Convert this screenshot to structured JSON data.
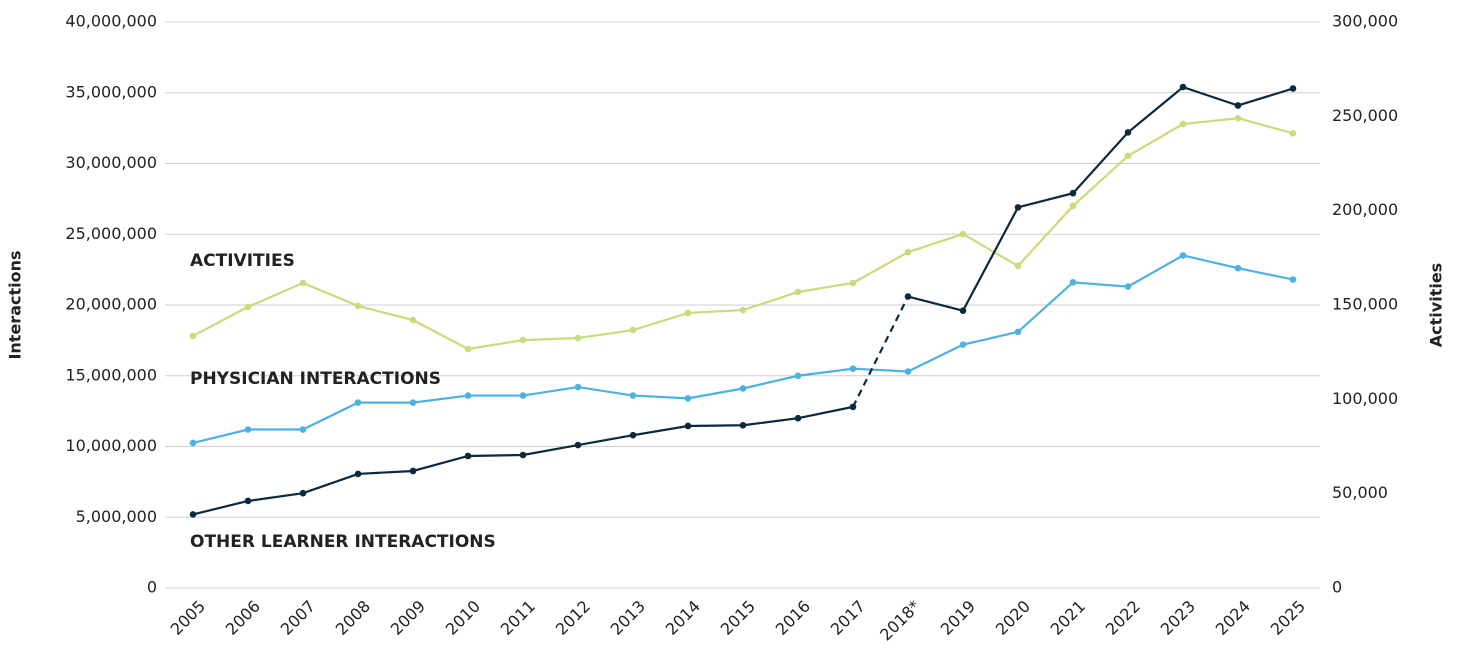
{
  "chart_data": {
    "type": "line",
    "ylabel": "Interactions",
    "y2label": "Activities",
    "categories": [
      "2005",
      "2006",
      "2007",
      "2008",
      "2009",
      "2010",
      "2011",
      "2012",
      "2013",
      "2014",
      "2015",
      "2016",
      "2017",
      "2018*",
      "2019",
      "2020",
      "2021",
      "2022",
      "2023",
      "2024",
      "2025"
    ],
    "ylim": [
      0,
      40000000
    ],
    "yticks": [
      0,
      {
        "value": 5000000,
        "label": "5,000,000"
      },
      {
        "value": 10000000,
        "label": "10,000,000"
      },
      {
        "value": 15000000,
        "label": "15,000,000"
      },
      {
        "value": 20000000,
        "label": "20,000,000"
      },
      {
        "value": 25000000,
        "label": "25,000,000"
      },
      {
        "value": 30000000,
        "label": "30,000,000"
      },
      {
        "value": 35000000,
        "label": "35,000,000"
      },
      {
        "value": 40000000,
        "label": "40,000,000"
      }
    ],
    "y2lim": [
      0,
      300000
    ],
    "y2ticks": [
      0,
      {
        "value": 50000,
        "label": "50,000"
      },
      {
        "value": 100000,
        "label": "100,000"
      },
      {
        "value": 150000,
        "label": "150,000"
      },
      {
        "value": 200000,
        "label": "200,000"
      },
      {
        "value": 250000,
        "label": "250,000"
      },
      {
        "value": 300000,
        "label": "300,000"
      }
    ],
    "grid": true,
    "series": [
      {
        "name": "ACTIVITIES",
        "color": "#c6dd7c",
        "label_color": "#7ea23c",
        "axis": "y2",
        "values": [
          133600,
          149000,
          161700,
          149500,
          142000,
          126700,
          131400,
          132500,
          136700,
          145800,
          147300,
          156900,
          161700,
          178000,
          187600,
          170700,
          202500,
          229000,
          245900,
          249000,
          241000
        ]
      },
      {
        "name": "PHYSICIAN INTERACTIONS",
        "color": "#4db1e2",
        "label_color": "#1b6b9c",
        "values": [
          10250000,
          11200000,
          11200000,
          13100000,
          13100000,
          13600000,
          13600000,
          14200000,
          13600000,
          13400000,
          14100000,
          15000000,
          15500000,
          15300000,
          17200000,
          18100000,
          21600000,
          21300000,
          23500000,
          22600000,
          21800000
        ]
      },
      {
        "name": "OTHER LEARNER INTERACTIONS",
        "color": "#0c2a3c",
        "label_color": "#0c2a3c",
        "dashed_segments": [
          [
            12,
            13
          ]
        ],
        "values": [
          5200000,
          6150000,
          6700000,
          8060000,
          8270000,
          9330000,
          9400000,
          10100000,
          10800000,
          11450000,
          11500000,
          12000000,
          12800000,
          20600000,
          19600000,
          26900000,
          27900000,
          32200000,
          35400000,
          34100000,
          35300000
        ]
      }
    ]
  }
}
